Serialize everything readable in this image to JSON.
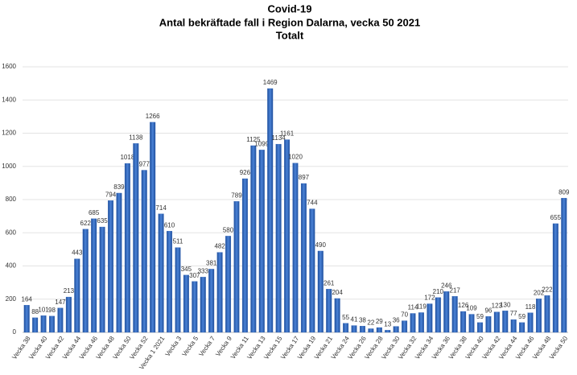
{
  "chart_data": {
    "type": "bar",
    "title": "Covid-19",
    "subtitle": [
      "Antal bekräftade fall i Region Dalarna, vecka 50 2021",
      "Totalt"
    ],
    "categories": [
      "Vecka 38",
      null,
      "Vecka 40",
      null,
      "Vecka 42",
      null,
      "Vecka 44",
      null,
      "Vecka 46",
      null,
      "Vecka 48",
      null,
      "Vecka 50",
      null,
      "Vecka 52",
      null,
      "Vecka 1 2021",
      null,
      "Vecka 3",
      null,
      "Vecka 5",
      null,
      "Vecka 7",
      null,
      "Vecka 9",
      null,
      "Vecka 11",
      null,
      "Vecka 13",
      null,
      "Vecka 15",
      null,
      "Vecka 17",
      null,
      "Vecka 19",
      null,
      "Vecka 21",
      null,
      "Vecka 24",
      null,
      "Vecka 26",
      null,
      "Vecka 28",
      null,
      "Vecka 30",
      null,
      "Vecka 32",
      null,
      "Vecka 34",
      null,
      "Vecka 36",
      null,
      "Vecka 38",
      null,
      "Vecka 40",
      null,
      "Vecka 42",
      null,
      "Vecka 44",
      null,
      "Vecka 46",
      null,
      "Vecka 48",
      null,
      "Vecka 50"
    ],
    "values": [
      164,
      88,
      101,
      98,
      147,
      213,
      443,
      622,
      685,
      635,
      794,
      839,
      1018,
      1138,
      977,
      1266,
      714,
      610,
      511,
      345,
      307,
      333,
      381,
      482,
      580,
      789,
      926,
      1125,
      1099,
      1469,
      1134,
      1161,
      1020,
      897,
      744,
      490,
      261,
      204,
      55,
      41,
      38,
      22,
      29,
      13,
      36,
      70,
      114,
      119,
      172,
      210,
      246,
      217,
      126,
      109,
      59,
      96,
      123,
      130,
      77,
      59,
      118,
      202,
      222,
      655,
      809
    ],
    "color": "#2f62b5",
    "ylim": [
      0,
      1600
    ],
    "yticks": [
      0,
      200,
      400,
      600,
      800,
      1000,
      1200,
      1400,
      1600
    ],
    "grid": true
  }
}
